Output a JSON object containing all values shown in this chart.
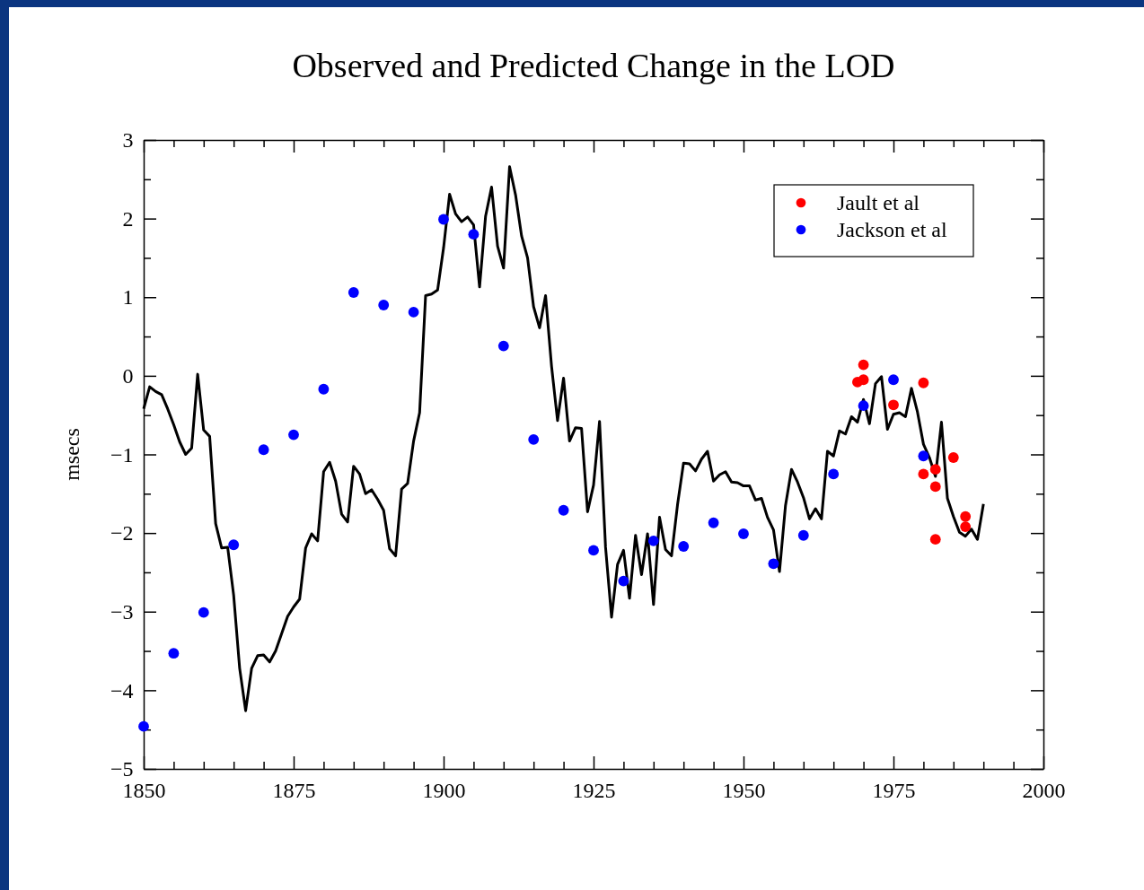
{
  "chart_data": {
    "type": "line",
    "title": "Observed and Predicted Change in the LOD",
    "ylabel": "msecs",
    "xlim": [
      1850,
      2000
    ],
    "ylim": [
      -5,
      3
    ],
    "xticks": [
      1850,
      {
        "value": 1855,
        "label": null
      },
      {
        "value": 1860,
        "label": null
      },
      {
        "value": 1865,
        "label": null
      },
      {
        "value": 1870,
        "label": null
      },
      1875,
      {
        "value": 1880,
        "label": null
      },
      {
        "value": 1885,
        "label": null
      },
      {
        "value": 1890,
        "label": null
      },
      {
        "value": 1895,
        "label": null
      },
      1900,
      {
        "value": 1905,
        "label": null
      },
      {
        "value": 1910,
        "label": null
      },
      {
        "value": 1915,
        "label": null
      },
      {
        "value": 1920,
        "label": null
      },
      1925,
      {
        "value": 1930,
        "label": null
      },
      {
        "value": 1935,
        "label": null
      },
      {
        "value": 1940,
        "label": null
      },
      {
        "value": 1945,
        "label": null
      },
      1950,
      {
        "value": 1955,
        "label": null
      },
      {
        "value": 1960,
        "label": null
      },
      {
        "value": 1965,
        "label": null
      },
      {
        "value": 1970,
        "label": null
      },
      1975,
      {
        "value": 1980,
        "label": null
      },
      {
        "value": 1985,
        "label": null
      },
      {
        "value": 1990,
        "label": null
      },
      {
        "value": 1995,
        "label": null
      },
      2000
    ],
    "yticks": [
      {
        "value": -5,
        "label": "−5"
      },
      {
        "value": -4.5,
        "label": null
      },
      {
        "value": -4,
        "label": "−4"
      },
      {
        "value": -3.5,
        "label": null
      },
      {
        "value": -3,
        "label": "−3"
      },
      {
        "value": -2.5,
        "label": null
      },
      {
        "value": -2,
        "label": "−2"
      },
      {
        "value": -1.5,
        "label": null
      },
      {
        "value": -1,
        "label": "−1"
      },
      {
        "value": -0.5,
        "label": null
      },
      0,
      {
        "value": 0.5,
        "label": null
      },
      1,
      {
        "value": 1.5,
        "label": null
      },
      2,
      {
        "value": 2.5,
        "label": null
      },
      3
    ],
    "grid": false,
    "legend": "top right",
    "line_style": "solid",
    "series": [
      {
        "color": "#000000",
        "marker": "none",
        "x": [
          1850,
          1851,
          1852,
          1853,
          1854,
          1855,
          1856,
          1857,
          1858,
          1859,
          1860,
          1861,
          1862,
          1863,
          1864,
          1865,
          1866,
          1867,
          1868,
          1869,
          1870,
          1871,
          1872,
          1873,
          1874,
          1875,
          1876,
          1877,
          1878,
          1879,
          1880,
          1881,
          1882,
          1883,
          1884,
          1885,
          1886,
          1887,
          1888,
          1889,
          1890,
          1891,
          1892,
          1893,
          1894,
          1895,
          1896,
          1897,
          1898,
          1899,
          1900,
          1901,
          1902,
          1903,
          1904,
          1905,
          1906,
          1907,
          1908,
          1909,
          1910,
          1911,
          1912,
          1913,
          1914,
          1915,
          1916,
          1917,
          1918,
          1919,
          1920,
          1921,
          1922,
          1923,
          1924,
          1925,
          1926,
          1927,
          1928,
          1929,
          1930,
          1931,
          1932,
          1933,
          1934,
          1935,
          1936,
          1937,
          1938,
          1939,
          1940,
          1941,
          1942,
          1943,
          1944,
          1945,
          1946,
          1947,
          1948,
          1949,
          1950,
          1951,
          1952,
          1953,
          1954,
          1955,
          1956,
          1957,
          1958,
          1959,
          1960,
          1961,
          1962,
          1963,
          1964,
          1965,
          1966,
          1967,
          1968,
          1969,
          1970,
          1971,
          1972,
          1973,
          1974,
          1975,
          1976,
          1977,
          1978,
          1979,
          1980,
          1981,
          1982,
          1983,
          1984,
          1985,
          1986,
          1987,
          1988,
          1989,
          1990
        ],
        "values": [
          -0.42,
          -0.14,
          -0.2,
          -0.24,
          -0.42,
          -0.62,
          -0.84,
          -1.0,
          -0.92,
          0.02,
          -0.69,
          -0.77,
          -1.88,
          -2.19,
          -2.18,
          -2.79,
          -3.72,
          -4.26,
          -3.72,
          -3.56,
          -3.55,
          -3.64,
          -3.5,
          -3.28,
          -3.06,
          -2.94,
          -2.84,
          -2.19,
          -2.01,
          -2.1,
          -1.22,
          -1.1,
          -1.34,
          -1.76,
          -1.86,
          -1.15,
          -1.25,
          -1.5,
          -1.45,
          -1.57,
          -1.71,
          -2.2,
          -2.29,
          -1.44,
          -1.37,
          -0.83,
          -0.47,
          1.02,
          1.04,
          1.09,
          1.63,
          2.31,
          2.06,
          1.96,
          2.02,
          1.92,
          1.13,
          2.03,
          2.4,
          1.65,
          1.37,
          2.66,
          2.3,
          1.78,
          1.5,
          0.88,
          0.61,
          1.02,
          0.12,
          -0.57,
          -0.03,
          -0.83,
          -0.66,
          -0.67,
          -1.73,
          -1.39,
          -0.58,
          -2.18,
          -3.07,
          -2.4,
          -2.22,
          -2.83,
          -2.03,
          -2.53,
          -2.01,
          -2.91,
          -1.8,
          -2.21,
          -2.29,
          -1.64,
          -1.11,
          -1.12,
          -1.21,
          -1.06,
          -0.96,
          -1.34,
          -1.26,
          -1.22,
          -1.35,
          -1.36,
          -1.4,
          -1.4,
          -1.58,
          -1.56,
          -1.8,
          -1.96,
          -2.49,
          -1.65,
          -1.19,
          -1.35,
          -1.55,
          -1.82,
          -1.69,
          -1.82,
          -0.96,
          -1.02,
          -0.7,
          -0.74,
          -0.52,
          -0.59,
          -0.3,
          -0.61,
          -0.1,
          -0.01,
          -0.68,
          -0.49,
          -0.47,
          -0.52,
          -0.16,
          -0.46,
          -0.87,
          -1.04,
          -1.28,
          -0.59,
          -1.56,
          -1.79,
          -1.99,
          -2.04,
          -1.95,
          -2.08,
          -1.63
        ]
      },
      {
        "type": "scatter",
        "name": "Jault et al",
        "color": "#ff0000",
        "marker": "circle",
        "x": [
          1969,
          1970,
          1970,
          1975,
          1980,
          1980,
          1982,
          1982,
          1982,
          1985,
          1987,
          1987
        ],
        "values": [
          -0.08,
          0.14,
          -0.05,
          -0.37,
          -0.09,
          -1.25,
          -1.19,
          -1.41,
          -2.08,
          -1.04,
          -1.79,
          -1.92
        ]
      },
      {
        "type": "scatter",
        "name": "Jackson et al",
        "color": "#0000ff",
        "marker": "circle",
        "x": [
          1850,
          1855,
          1860,
          1865,
          1870,
          1875,
          1880,
          1885,
          1890,
          1895,
          1900,
          1905,
          1910,
          1915,
          1920,
          1925,
          1930,
          1935,
          1940,
          1945,
          1950,
          1955,
          1960,
          1965,
          1970,
          1975,
          1980
        ],
        "values": [
          -4.46,
          -3.53,
          -3.01,
          -2.15,
          -0.94,
          -0.75,
          -0.17,
          1.06,
          0.9,
          0.81,
          1.99,
          1.8,
          0.38,
          -0.81,
          -1.71,
          -2.22,
          -2.61,
          -2.1,
          -2.17,
          -1.87,
          -2.01,
          -2.39,
          -2.03,
          -1.25,
          -0.38,
          -0.05,
          -1.02
        ]
      }
    ]
  }
}
